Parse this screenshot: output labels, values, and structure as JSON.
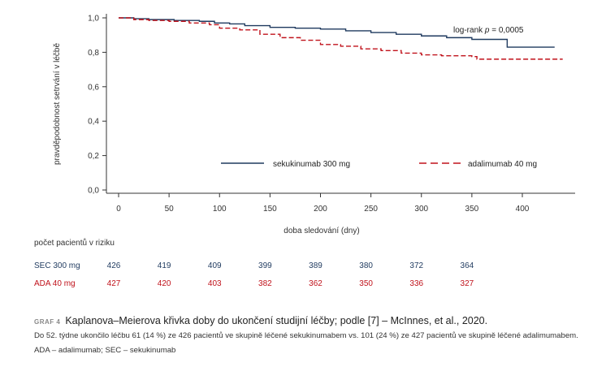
{
  "chart_data": {
    "type": "line",
    "ylabel": "pravděpodobnost setrvání v léčbě",
    "xlabel": "doba sledování (dny)",
    "xlim": [
      -20,
      450
    ],
    "ylim": [
      0,
      1.0
    ],
    "x_ticks": [
      0,
      50,
      100,
      150,
      200,
      250,
      300,
      350,
      400
    ],
    "y_ticks": [
      0,
      0.2,
      0.4,
      0.6,
      0.8,
      1.0
    ],
    "x_tick_labels": [
      "0",
      "50",
      "100",
      "150",
      "200",
      "250",
      "300",
      "350",
      "400"
    ],
    "y_tick_labels": [
      "0,0",
      "0,2",
      "0,4",
      "0,6",
      "0,8",
      "1,0"
    ],
    "annotation": "log-rank p = 0,0005",
    "annotation_prefix": "log-rank ",
    "annotation_p": "p",
    "annotation_suffix": " = 0,0005",
    "legend_position": "bottom",
    "series": [
      {
        "name": "sekukinumab 300 mg",
        "color": "#1f3a5f",
        "style": "solid",
        "points": [
          [
            0,
            1.0
          ],
          [
            15,
            0.995
          ],
          [
            30,
            0.99
          ],
          [
            55,
            0.985
          ],
          [
            80,
            0.98
          ],
          [
            95,
            0.97
          ],
          [
            110,
            0.965
          ],
          [
            125,
            0.955
          ],
          [
            150,
            0.945
          ],
          [
            175,
            0.94
          ],
          [
            200,
            0.935
          ],
          [
            225,
            0.925
          ],
          [
            250,
            0.915
          ],
          [
            275,
            0.905
          ],
          [
            300,
            0.895
          ],
          [
            325,
            0.885
          ],
          [
            350,
            0.875
          ],
          [
            385,
            0.865
          ],
          [
            385,
            0.83
          ],
          [
            432,
            0.83
          ]
        ]
      },
      {
        "name": "adalimumab 40 mg",
        "color": "#c0121b",
        "style": "dashed",
        "points": [
          [
            0,
            1.0
          ],
          [
            15,
            0.99
          ],
          [
            30,
            0.985
          ],
          [
            50,
            0.98
          ],
          [
            70,
            0.97
          ],
          [
            90,
            0.96
          ],
          [
            100,
            0.94
          ],
          [
            120,
            0.93
          ],
          [
            140,
            0.905
          ],
          [
            160,
            0.885
          ],
          [
            180,
            0.87
          ],
          [
            200,
            0.845
          ],
          [
            220,
            0.835
          ],
          [
            240,
            0.82
          ],
          [
            260,
            0.81
          ],
          [
            280,
            0.795
          ],
          [
            300,
            0.785
          ],
          [
            320,
            0.78
          ],
          [
            350,
            0.775
          ],
          [
            355,
            0.76
          ],
          [
            440,
            0.76
          ]
        ]
      }
    ]
  },
  "risk_table": {
    "title": "počet pacientů v riziku",
    "days": [
      0,
      50,
      100,
      150,
      200,
      250,
      300,
      350
    ],
    "rows": [
      {
        "label": "SEC 300 mg",
        "values": [
          "426",
          "419",
          "409",
          "399",
          "389",
          "380",
          "372",
          "364"
        ]
      },
      {
        "label": "ADA 40 mg",
        "values": [
          "427",
          "420",
          "403",
          "382",
          "362",
          "350",
          "336",
          "327"
        ]
      }
    ]
  },
  "caption": {
    "tag": "GRAF 4",
    "title": "Kaplanova–Meierova křivka doby do ukončení studijní léčby; podle [7] – McInnes, et al., 2020.",
    "body": "Do 52. týdne ukončilo léčbu 61 (14 %) ze 426 pacientů ve skupině léčené sekukinumabem vs. 101 (24 %) ze 427 pacientů ve skupině léčené adalimumabem.",
    "abbreviations": "ADA – adalimumab; SEC – sekukinumab"
  }
}
